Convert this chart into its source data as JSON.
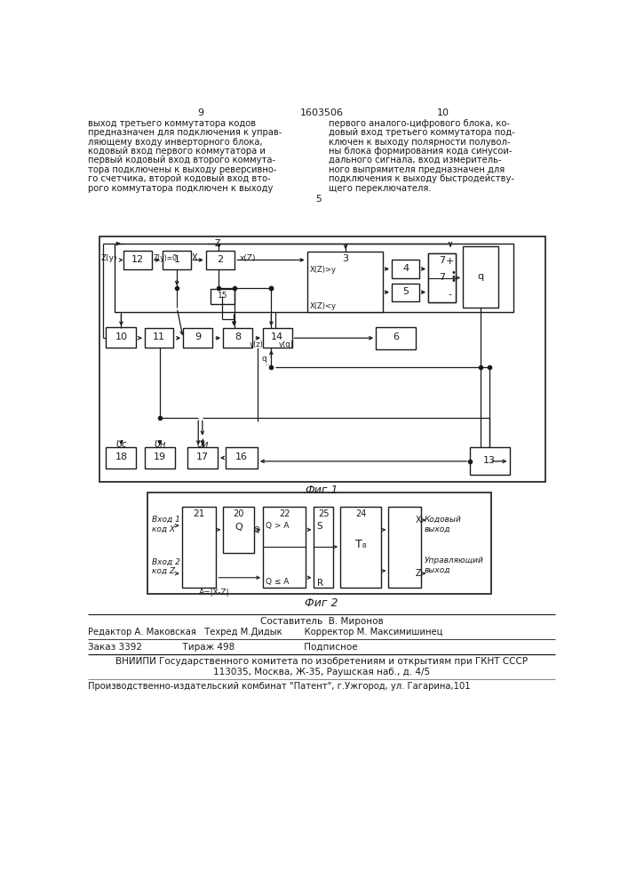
{
  "page_left": "9",
  "page_right": "10",
  "patent_number": "1603506",
  "text_left": [
    "выход третьего коммутатора кодов",
    "предназначен для подключения к управ-",
    "ляющему входу инверторного блока,",
    "кодовый вход первого коммутатора и",
    "первый кодовый вход второго коммута-",
    "тора подключены к выходу реверсивно-",
    "го счетчика, второй кодовый вход вто-",
    "рого коммутатора подключен к выходу"
  ],
  "text_right": [
    "первого аналого-цифрового блока, ко-",
    "довый вход третьего коммутатора под-",
    "ключен к выходу полярности полувол-",
    "ны блока формирования кода синусои-",
    "дального сигнала, вход измеритель-",
    "ного выпрямителя предназначен для",
    "подключения к выходу быстродейству-",
    "щего переключателя."
  ],
  "num5": "5",
  "fig1_caption": "Фиг.1",
  "fig2_caption": "Фиг 2",
  "footer_composed": "Составитель  В. Миронов",
  "footer_editor": "Редактор А. Маковская   Техред М.Дидык        Корректор М. Максимишинец",
  "footer_order": "Заказ 3392              Тираж 498                        Подписное",
  "footer_vniip1": "ВНИИПИ Государственного комитета по изобретениям и открытиям при ГКНТ СССР",
  "footer_vniip2": "113035, Москва, Ж-35, Раушская наб., д. 4/5",
  "footer_prod": "Производственно-издательский комбинат \"Патент\", г.Ужгород, ул. Гагарина,101",
  "bg": "#ffffff",
  "fg": "#1a1a1a"
}
